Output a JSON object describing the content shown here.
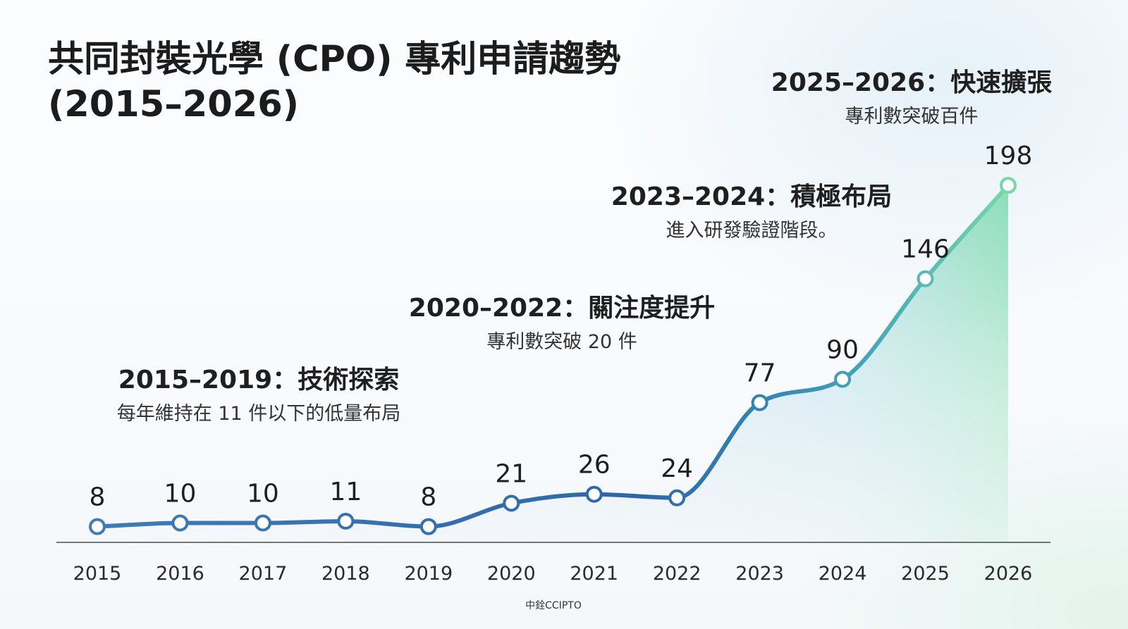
{
  "chart_data": {
    "type": "line",
    "title_lines": [
      "共同封裝光學 (CPO) 專利申請趨勢",
      "(2015–2026)"
    ],
    "x": [
      2015,
      2016,
      2017,
      2018,
      2019,
      2020,
      2021,
      2022,
      2023,
      2024,
      2025,
      2026
    ],
    "values": [
      8,
      10,
      10,
      11,
      8,
      21,
      26,
      24,
      77,
      90,
      146,
      198
    ],
    "ylim": [
      0,
      200
    ],
    "y_axis_visible": false,
    "grid": false,
    "legend": false,
    "data_labels": true,
    "annotations": [
      {
        "heading": "2015–2019：技術探索",
        "note": "每年維持在 11 件以下的低量布局"
      },
      {
        "heading": "2020–2022：關注度提升",
        "note": "專利數突破 20 件"
      },
      {
        "heading": "2023–2024：積極布局",
        "note": "進入研發驗證階段。"
      },
      {
        "heading": "2025–2026：快速擴張",
        "note": "專利數突破百件"
      }
    ]
  },
  "source": "中銓CCIPTO",
  "colors": {
    "line_gradient": [
      "#3e7bb8",
      "#2d67ab",
      "#3285b6",
      "#45a8b9",
      "#74d9a7"
    ],
    "area_gradient": [
      "#cddff0",
      "#bcd8ee",
      "#a9d9e3",
      "#84dcb3"
    ],
    "axis": "#4a4a4a",
    "point_fill": "#ffffff"
  }
}
